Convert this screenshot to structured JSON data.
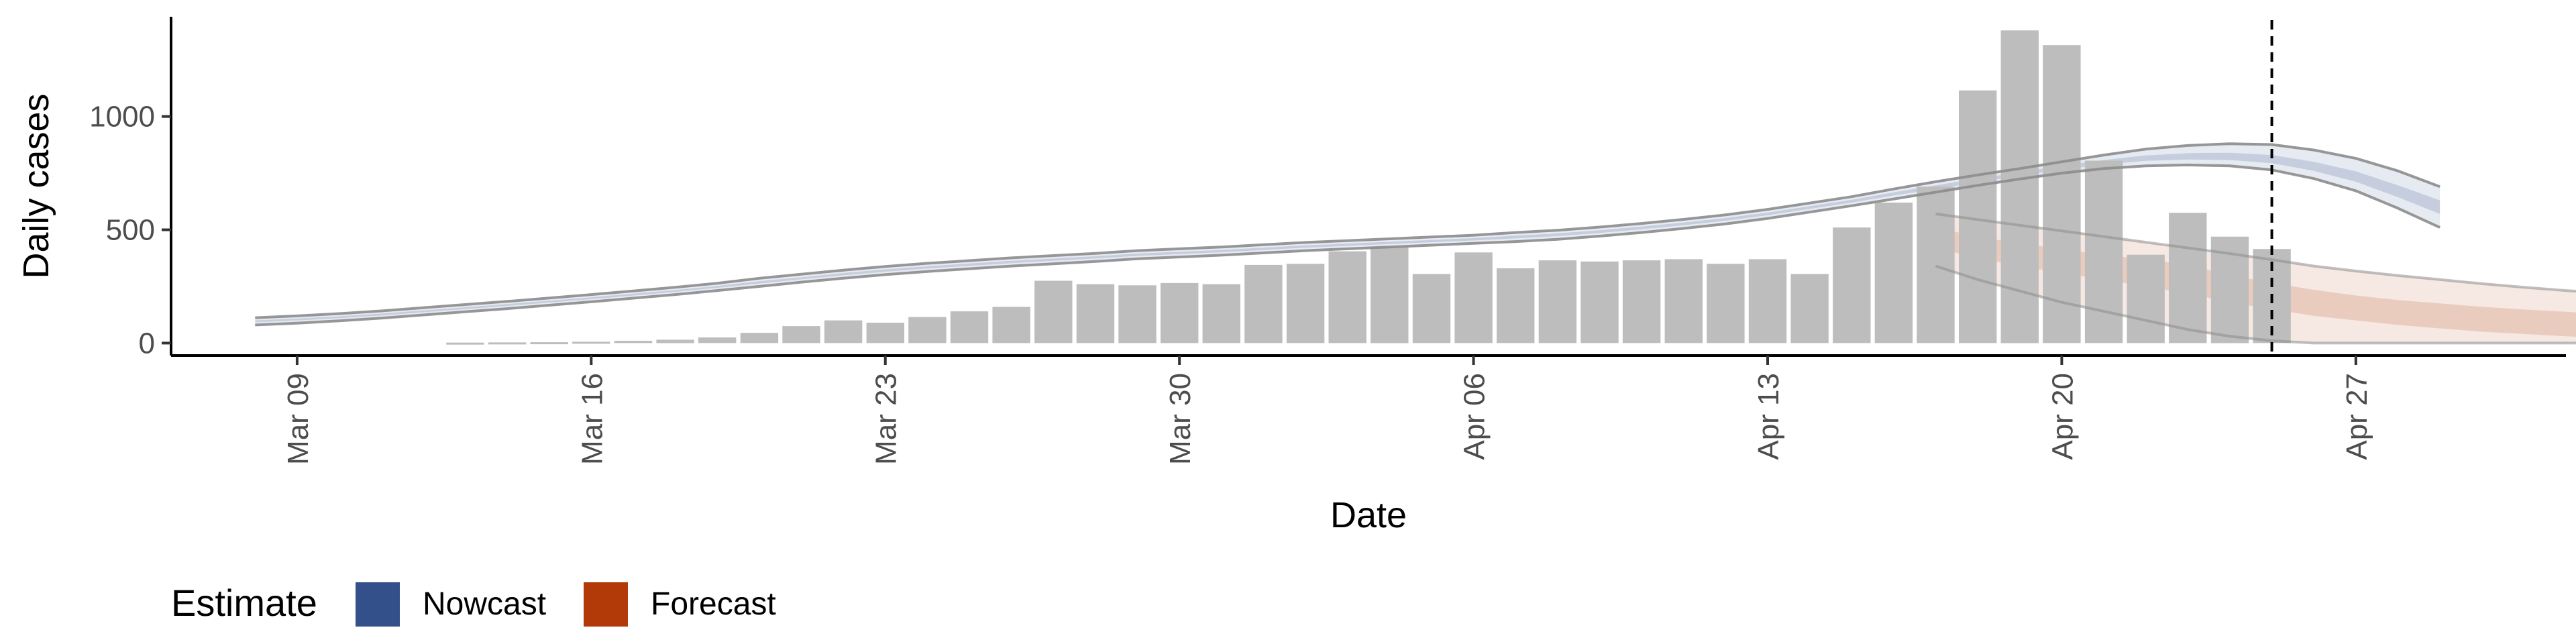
{
  "chart_data": {
    "type": "bar",
    "xlabel": "Date",
    "ylabel": "Daily cases",
    "ylim": [
      -55,
      1440
    ],
    "yticks": [
      0,
      500,
      1000
    ],
    "x_date_range": [
      "2020-03-06",
      "2020-05-02"
    ],
    "xticks": [
      {
        "date": "2020-03-09",
        "label": "Mar 09"
      },
      {
        "date": "2020-03-16",
        "label": "Mar 16"
      },
      {
        "date": "2020-03-23",
        "label": "Mar 23"
      },
      {
        "date": "2020-03-30",
        "label": "Mar 30"
      },
      {
        "date": "2020-04-06",
        "label": "Apr 06"
      },
      {
        "date": "2020-04-13",
        "label": "Apr 13"
      },
      {
        "date": "2020-04-20",
        "label": "Apr 20"
      },
      {
        "date": "2020-04-27",
        "label": "Apr 27"
      }
    ],
    "cases": {
      "start_date": "2020-03-13",
      "values": [
        2,
        3,
        4,
        6,
        10,
        15,
        25,
        45,
        75,
        100,
        90,
        115,
        140,
        160,
        275,
        260,
        255,
        265,
        260,
        345,
        350,
        405,
        425,
        305,
        400,
        330,
        365,
        360,
        365,
        370,
        350,
        370,
        305,
        510,
        620,
        690,
        1115,
        1380,
        1315,
        805,
        390,
        575,
        470,
        415
      ]
    },
    "reference_line_date": "2020-04-25",
    "nowcast": {
      "start_date": "2020-03-08",
      "median": [
        96,
        104,
        114,
        126,
        140,
        154,
        168,
        183,
        198,
        214,
        230,
        248,
        268,
        286,
        304,
        320,
        334,
        346,
        358,
        368,
        378,
        390,
        398,
        406,
        416,
        426,
        434,
        442,
        450,
        458,
        468,
        478,
        492,
        508,
        526,
        546,
        570,
        598,
        626,
        658,
        688,
        718,
        746,
        774,
        798,
        816,
        824,
        824,
        812,
        780,
        735,
        670,
        600
      ],
      "lower_50": [
        92,
        100,
        110,
        122,
        136,
        150,
        164,
        179,
        194,
        210,
        226,
        244,
        263,
        282,
        299,
        315,
        329,
        341,
        353,
        363,
        373,
        385,
        393,
        401,
        411,
        421,
        429,
        437,
        445,
        453,
        462,
        472,
        486,
        502,
        520,
        540,
        564,
        592,
        620,
        651,
        680,
        710,
        738,
        765,
        788,
        804,
        810,
        808,
        794,
        760,
        712,
        644,
        570
      ],
      "upper_50": [
        100,
        108,
        118,
        130,
        144,
        158,
        172,
        187,
        202,
        218,
        234,
        252,
        273,
        290,
        309,
        325,
        339,
        351,
        363,
        373,
        383,
        395,
        403,
        411,
        421,
        431,
        439,
        447,
        455,
        463,
        474,
        484,
        498,
        514,
        532,
        552,
        576,
        604,
        632,
        665,
        696,
        726,
        754,
        783,
        808,
        828,
        838,
        840,
        830,
        800,
        758,
        696,
        630
      ],
      "lower_90": [
        80,
        88,
        98,
        110,
        124,
        138,
        152,
        167,
        182,
        198,
        214,
        232,
        250,
        269,
        286,
        302,
        316,
        328,
        340,
        350,
        360,
        372,
        380,
        388,
        398,
        408,
        416,
        424,
        432,
        440,
        448,
        458,
        472,
        488,
        506,
        526,
        550,
        578,
        606,
        636,
        666,
        696,
        724,
        750,
        770,
        782,
        786,
        782,
        764,
        726,
        672,
        595,
        510
      ],
      "upper_90": [
        112,
        120,
        130,
        142,
        156,
        170,
        184,
        199,
        214,
        230,
        246,
        264,
        286,
        304,
        322,
        338,
        352,
        364,
        376,
        386,
        396,
        408,
        416,
        424,
        434,
        444,
        452,
        460,
        468,
        476,
        488,
        498,
        512,
        528,
        546,
        566,
        590,
        618,
        646,
        680,
        712,
        742,
        770,
        800,
        830,
        856,
        872,
        880,
        876,
        852,
        815,
        760,
        690
      ]
    },
    "forecast": {
      "start_date": "2020-04-17",
      "median": [
        470,
        430,
        400,
        375,
        350,
        330,
        300,
        265,
        230,
        200,
        175,
        155,
        140,
        125,
        115,
        105,
        95
      ],
      "lower_50": [
        420,
        375,
        340,
        310,
        280,
        250,
        220,
        180,
        150,
        120,
        100,
        80,
        65,
        50,
        40,
        30,
        22
      ],
      "upper_50": [
        510,
        470,
        440,
        415,
        390,
        370,
        345,
        300,
        265,
        235,
        210,
        190,
        175,
        160,
        148,
        138,
        128
      ],
      "lower_90": [
        340,
        280,
        230,
        180,
        140,
        100,
        60,
        30,
        10,
        0,
        0,
        0,
        0,
        0,
        0,
        0,
        0
      ],
      "upper_90": [
        570,
        545,
        520,
        495,
        470,
        445,
        420,
        395,
        368,
        340,
        318,
        298,
        280,
        262,
        246,
        232,
        220
      ]
    },
    "legend": {
      "title": "Estimate",
      "placement": "bottom-left",
      "items": [
        {
          "label": "Nowcast",
          "color": "#34508a"
        },
        {
          "label": "Forecast",
          "color": "#b23a08"
        }
      ]
    },
    "colors": {
      "bars": "#bdbdbd",
      "nowcast_band": "#34508a",
      "forecast_band": "#c0663a",
      "outline": "#8c8c8c",
      "reference_line": "#000000"
    },
    "grid": false
  }
}
